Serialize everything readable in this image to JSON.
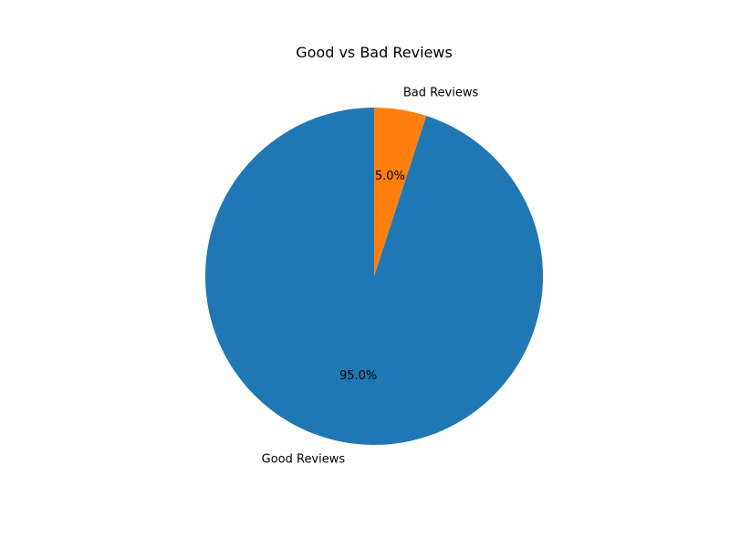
{
  "chart_data": {
    "type": "pie",
    "title": "Good vs Bad Reviews",
    "slices": [
      {
        "label": "Good Reviews",
        "value": 95.0,
        "pct_label": "95.0%",
        "color": "#1f77b4"
      },
      {
        "label": "Bad Reviews",
        "value": 5.0,
        "pct_label": "5.0%",
        "color": "#ff7f0e"
      }
    ],
    "start_angle_deg": 90,
    "direction": "counterclockwise",
    "legend": "none"
  }
}
